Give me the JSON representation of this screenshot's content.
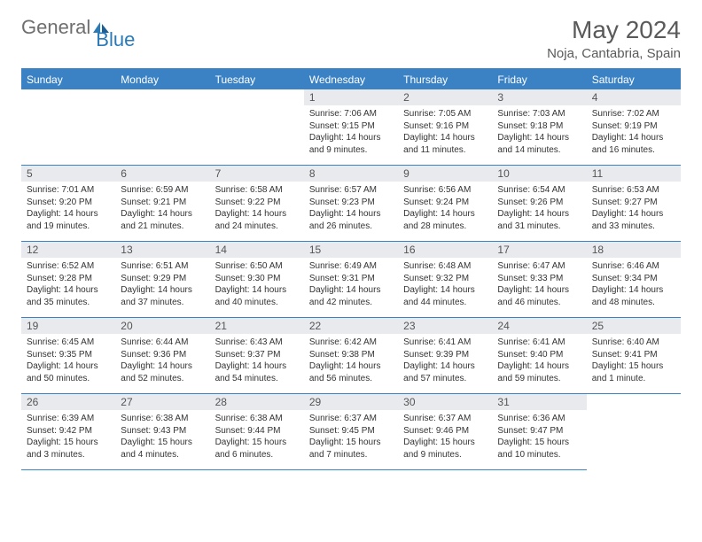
{
  "logo": {
    "word1": "General",
    "word2": "Blue"
  },
  "title": "May 2024",
  "subtitle": "Noja, Cantabria, Spain",
  "styling": {
    "header_bg": "#3b82c4",
    "header_text": "#ffffff",
    "daynum_bg": "#e8eaed",
    "border_color": "#3b82c4",
    "title_color": "#5a5a5a",
    "body_text_color": "#333333",
    "page_bg": "#ffffff",
    "title_fontsize": 28,
    "subtitle_fontsize": 15,
    "weekday_fontsize": 12,
    "body_fontsize": 10
  },
  "weekdays": [
    "Sunday",
    "Monday",
    "Tuesday",
    "Wednesday",
    "Thursday",
    "Friday",
    "Saturday"
  ],
  "blanks_before": 3,
  "days": [
    {
      "n": "1",
      "sr": "Sunrise: 7:06 AM",
      "ss": "Sunset: 9:15 PM",
      "d1": "Daylight: 14 hours",
      "d2": "and 9 minutes."
    },
    {
      "n": "2",
      "sr": "Sunrise: 7:05 AM",
      "ss": "Sunset: 9:16 PM",
      "d1": "Daylight: 14 hours",
      "d2": "and 11 minutes."
    },
    {
      "n": "3",
      "sr": "Sunrise: 7:03 AM",
      "ss": "Sunset: 9:18 PM",
      "d1": "Daylight: 14 hours",
      "d2": "and 14 minutes."
    },
    {
      "n": "4",
      "sr": "Sunrise: 7:02 AM",
      "ss": "Sunset: 9:19 PM",
      "d1": "Daylight: 14 hours",
      "d2": "and 16 minutes."
    },
    {
      "n": "5",
      "sr": "Sunrise: 7:01 AM",
      "ss": "Sunset: 9:20 PM",
      "d1": "Daylight: 14 hours",
      "d2": "and 19 minutes."
    },
    {
      "n": "6",
      "sr": "Sunrise: 6:59 AM",
      "ss": "Sunset: 9:21 PM",
      "d1": "Daylight: 14 hours",
      "d2": "and 21 minutes."
    },
    {
      "n": "7",
      "sr": "Sunrise: 6:58 AM",
      "ss": "Sunset: 9:22 PM",
      "d1": "Daylight: 14 hours",
      "d2": "and 24 minutes."
    },
    {
      "n": "8",
      "sr": "Sunrise: 6:57 AM",
      "ss": "Sunset: 9:23 PM",
      "d1": "Daylight: 14 hours",
      "d2": "and 26 minutes."
    },
    {
      "n": "9",
      "sr": "Sunrise: 6:56 AM",
      "ss": "Sunset: 9:24 PM",
      "d1": "Daylight: 14 hours",
      "d2": "and 28 minutes."
    },
    {
      "n": "10",
      "sr": "Sunrise: 6:54 AM",
      "ss": "Sunset: 9:26 PM",
      "d1": "Daylight: 14 hours",
      "d2": "and 31 minutes."
    },
    {
      "n": "11",
      "sr": "Sunrise: 6:53 AM",
      "ss": "Sunset: 9:27 PM",
      "d1": "Daylight: 14 hours",
      "d2": "and 33 minutes."
    },
    {
      "n": "12",
      "sr": "Sunrise: 6:52 AM",
      "ss": "Sunset: 9:28 PM",
      "d1": "Daylight: 14 hours",
      "d2": "and 35 minutes."
    },
    {
      "n": "13",
      "sr": "Sunrise: 6:51 AM",
      "ss": "Sunset: 9:29 PM",
      "d1": "Daylight: 14 hours",
      "d2": "and 37 minutes."
    },
    {
      "n": "14",
      "sr": "Sunrise: 6:50 AM",
      "ss": "Sunset: 9:30 PM",
      "d1": "Daylight: 14 hours",
      "d2": "and 40 minutes."
    },
    {
      "n": "15",
      "sr": "Sunrise: 6:49 AM",
      "ss": "Sunset: 9:31 PM",
      "d1": "Daylight: 14 hours",
      "d2": "and 42 minutes."
    },
    {
      "n": "16",
      "sr": "Sunrise: 6:48 AM",
      "ss": "Sunset: 9:32 PM",
      "d1": "Daylight: 14 hours",
      "d2": "and 44 minutes."
    },
    {
      "n": "17",
      "sr": "Sunrise: 6:47 AM",
      "ss": "Sunset: 9:33 PM",
      "d1": "Daylight: 14 hours",
      "d2": "and 46 minutes."
    },
    {
      "n": "18",
      "sr": "Sunrise: 6:46 AM",
      "ss": "Sunset: 9:34 PM",
      "d1": "Daylight: 14 hours",
      "d2": "and 48 minutes."
    },
    {
      "n": "19",
      "sr": "Sunrise: 6:45 AM",
      "ss": "Sunset: 9:35 PM",
      "d1": "Daylight: 14 hours",
      "d2": "and 50 minutes."
    },
    {
      "n": "20",
      "sr": "Sunrise: 6:44 AM",
      "ss": "Sunset: 9:36 PM",
      "d1": "Daylight: 14 hours",
      "d2": "and 52 minutes."
    },
    {
      "n": "21",
      "sr": "Sunrise: 6:43 AM",
      "ss": "Sunset: 9:37 PM",
      "d1": "Daylight: 14 hours",
      "d2": "and 54 minutes."
    },
    {
      "n": "22",
      "sr": "Sunrise: 6:42 AM",
      "ss": "Sunset: 9:38 PM",
      "d1": "Daylight: 14 hours",
      "d2": "and 56 minutes."
    },
    {
      "n": "23",
      "sr": "Sunrise: 6:41 AM",
      "ss": "Sunset: 9:39 PM",
      "d1": "Daylight: 14 hours",
      "d2": "and 57 minutes."
    },
    {
      "n": "24",
      "sr": "Sunrise: 6:41 AM",
      "ss": "Sunset: 9:40 PM",
      "d1": "Daylight: 14 hours",
      "d2": "and 59 minutes."
    },
    {
      "n": "25",
      "sr": "Sunrise: 6:40 AM",
      "ss": "Sunset: 9:41 PM",
      "d1": "Daylight: 15 hours",
      "d2": "and 1 minute."
    },
    {
      "n": "26",
      "sr": "Sunrise: 6:39 AM",
      "ss": "Sunset: 9:42 PM",
      "d1": "Daylight: 15 hours",
      "d2": "and 3 minutes."
    },
    {
      "n": "27",
      "sr": "Sunrise: 6:38 AM",
      "ss": "Sunset: 9:43 PM",
      "d1": "Daylight: 15 hours",
      "d2": "and 4 minutes."
    },
    {
      "n": "28",
      "sr": "Sunrise: 6:38 AM",
      "ss": "Sunset: 9:44 PM",
      "d1": "Daylight: 15 hours",
      "d2": "and 6 minutes."
    },
    {
      "n": "29",
      "sr": "Sunrise: 6:37 AM",
      "ss": "Sunset: 9:45 PM",
      "d1": "Daylight: 15 hours",
      "d2": "and 7 minutes."
    },
    {
      "n": "30",
      "sr": "Sunrise: 6:37 AM",
      "ss": "Sunset: 9:46 PM",
      "d1": "Daylight: 15 hours",
      "d2": "and 9 minutes."
    },
    {
      "n": "31",
      "sr": "Sunrise: 6:36 AM",
      "ss": "Sunset: 9:47 PM",
      "d1": "Daylight: 15 hours",
      "d2": "and 10 minutes."
    }
  ]
}
